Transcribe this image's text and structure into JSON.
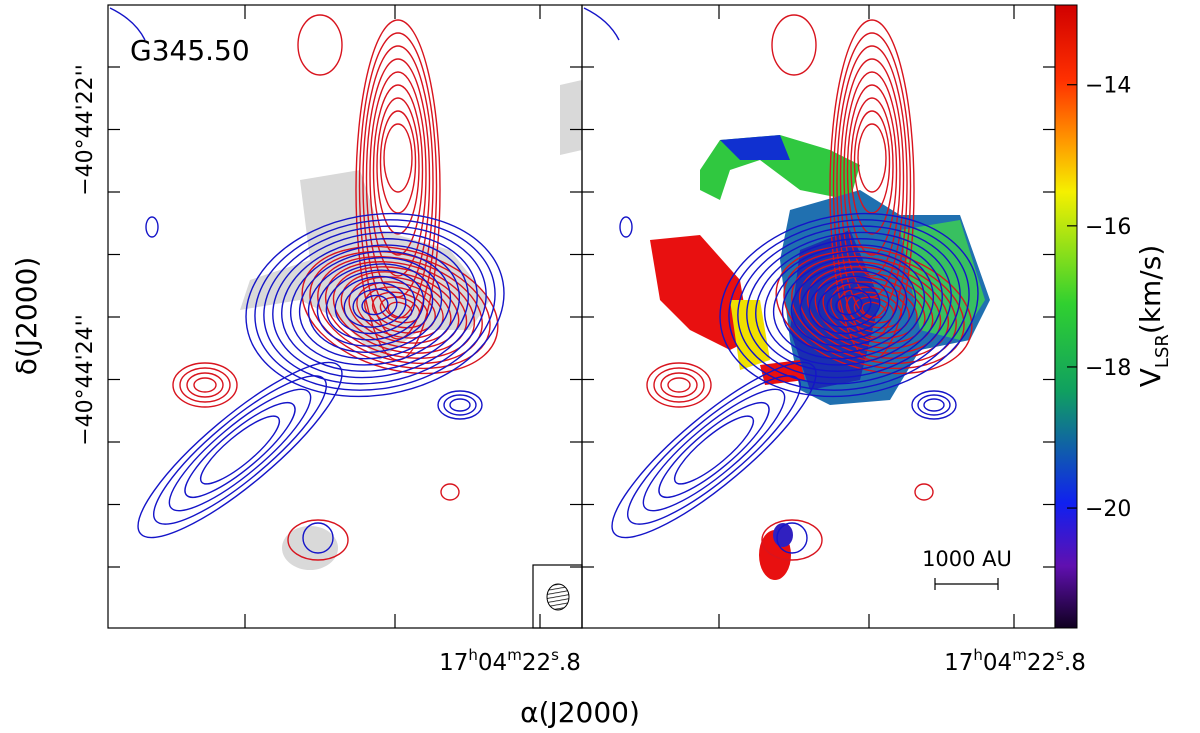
{
  "panel_label": "G345.50",
  "x_axis": {
    "label": "α(J2000)",
    "tick_label": [
      "17",
      "h",
      "04",
      "m",
      "22",
      "s",
      ".8"
    ]
  },
  "y_axis": {
    "label": "δ(J2000)",
    "tick_labels": [
      "−40°44'22''",
      "−40°44'24''"
    ]
  },
  "colorbar": {
    "label": [
      "V",
      "LSR",
      "(km/s)"
    ],
    "lim": [
      -21.7,
      -12.87
    ],
    "ticks": [
      {
        "value": -14,
        "label": "−14"
      },
      {
        "value": -16,
        "label": "−16"
      },
      {
        "value": -18,
        "label": "−18"
      },
      {
        "value": -20,
        "label": "−20"
      }
    ]
  },
  "scale_bar": "1000 AU"
}
